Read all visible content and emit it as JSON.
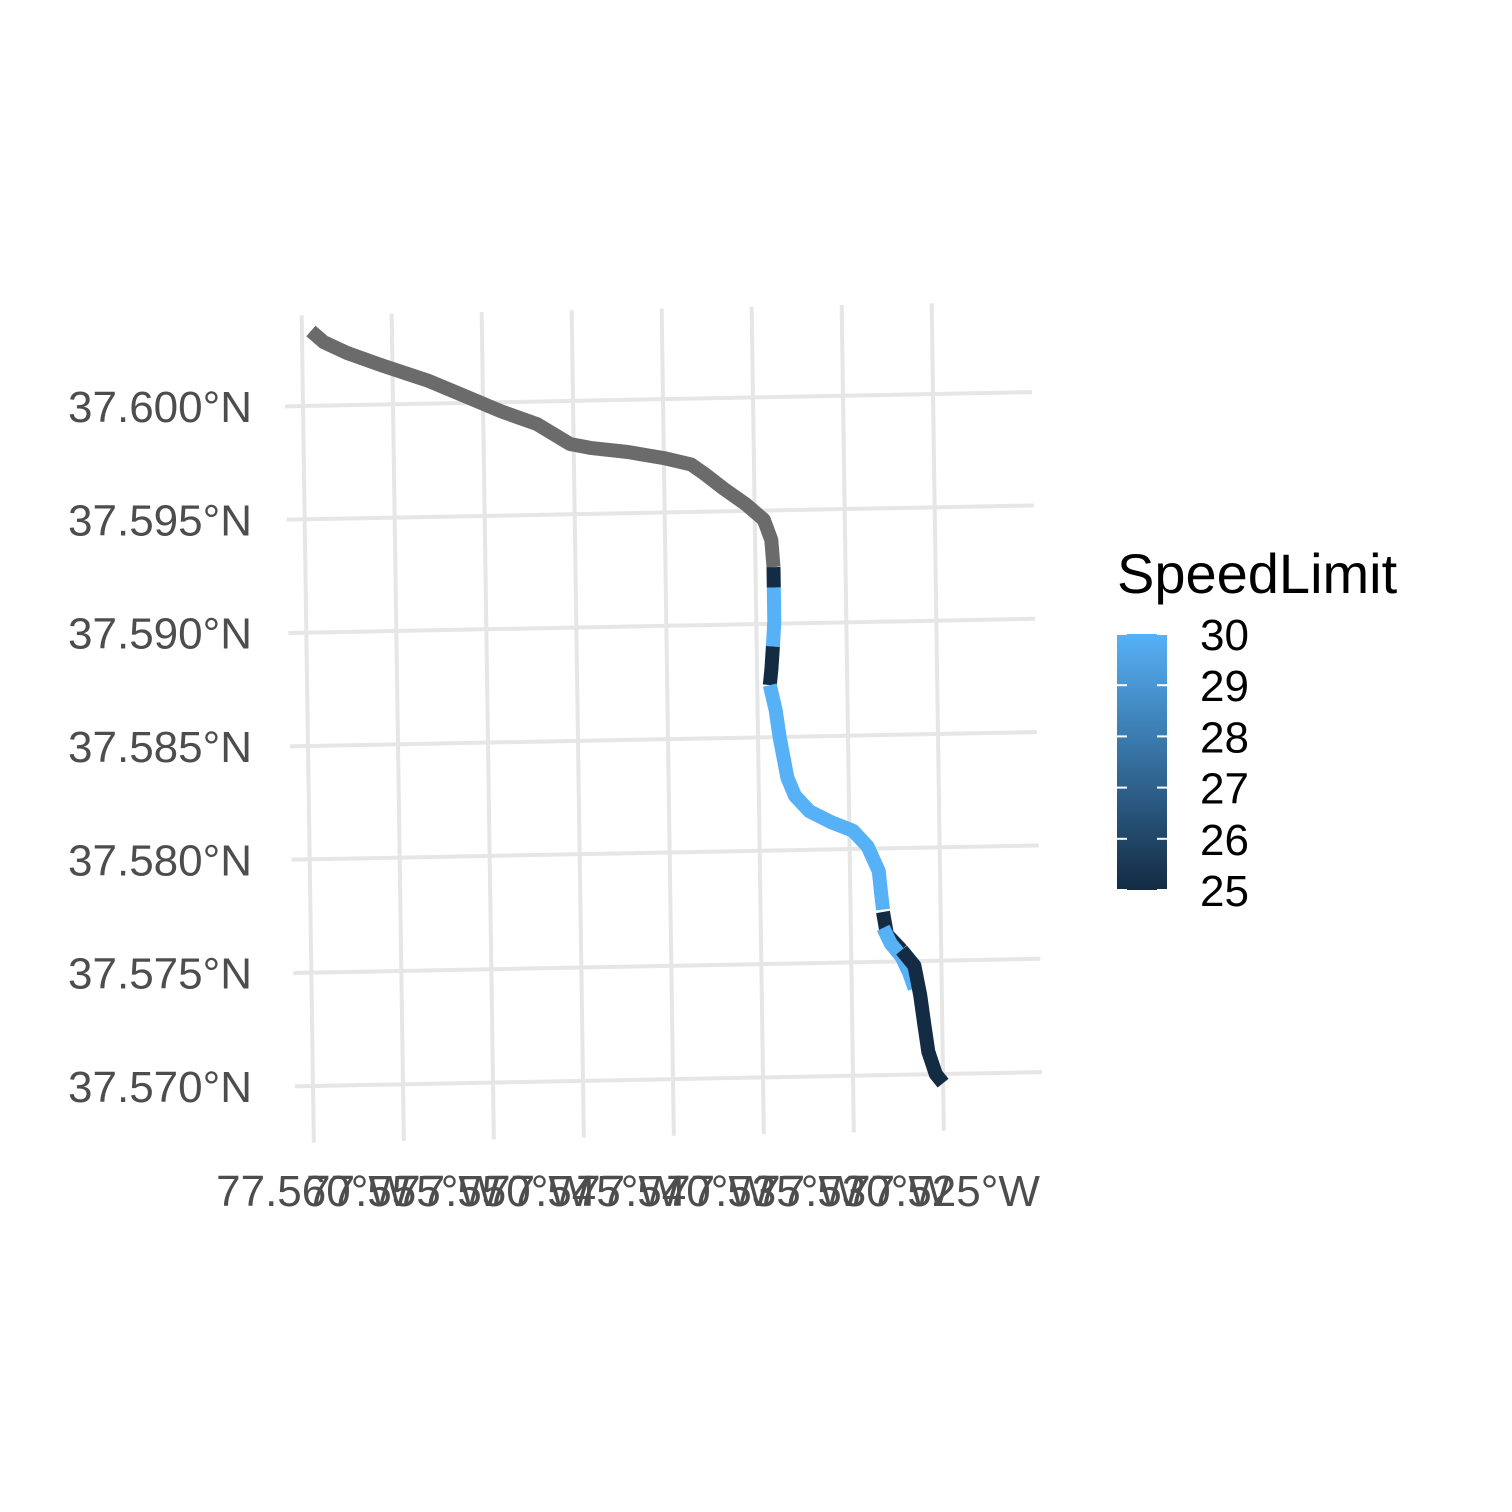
{
  "chart_data": {
    "type": "line",
    "title": "",
    "xlabel": "",
    "ylabel": "",
    "x_axis": {
      "range": [
        -77.56,
        -77.525
      ],
      "ticks": [
        -77.56,
        -77.555,
        -77.55,
        -77.545,
        -77.54,
        -77.535,
        -77.53,
        -77.525
      ],
      "tick_labels": [
        "77.560°W",
        "77.555°W",
        "77.550°W",
        "77.545°W",
        "77.540°W",
        "77.535°W",
        "77.530°W",
        "77.525°W"
      ]
    },
    "y_axis": {
      "range": [
        37.57,
        37.6
      ],
      "ticks": [
        37.57,
        37.575,
        37.58,
        37.585,
        37.59,
        37.595,
        37.6
      ],
      "tick_labels": [
        "37.570°N",
        "37.575°N",
        "37.580°N",
        "37.585°N",
        "37.590°N",
        "37.595°N",
        "37.600°N"
      ]
    },
    "grid": true,
    "legend": {
      "title": "SpeedLimit",
      "position": "right",
      "range": [
        25,
        30
      ],
      "ticks": [
        25,
        26,
        27,
        28,
        29,
        30
      ],
      "tick_labels": [
        "25",
        "26",
        "27",
        "28",
        "29",
        "30"
      ],
      "color_low": "#132b43",
      "color_high": "#56b1f7"
    },
    "na_color": "#6b6b6b",
    "segments": [
      {
        "speed_limit": null,
        "points": [
          [
            -77.5595,
            37.6033
          ],
          [
            -77.5588,
            37.6028
          ],
          [
            -77.5575,
            37.6023
          ],
          [
            -77.5555,
            37.6017
          ],
          [
            -77.553,
            37.601
          ],
          [
            -77.551,
            37.6003
          ],
          [
            -77.549,
            37.5996
          ],
          [
            -77.547,
            37.599
          ],
          [
            -77.546,
            37.5985
          ],
          [
            -77.5452,
            37.5981
          ],
          [
            -77.544,
            37.5979
          ],
          [
            -77.542,
            37.5977
          ],
          [
            -77.54,
            37.5974
          ],
          [
            -77.5385,
            37.5971
          ],
          [
            -77.5378,
            37.5967
          ],
          [
            -77.5367,
            37.596
          ],
          [
            -77.5355,
            37.5953
          ],
          [
            -77.5345,
            37.5946
          ],
          [
            -77.5341,
            37.5937
          ],
          [
            -77.534,
            37.5925
          ]
        ]
      },
      {
        "speed_limit": 25,
        "points": [
          [
            -77.534,
            37.5925
          ],
          [
            -77.534,
            37.5916
          ]
        ]
      },
      {
        "speed_limit": 30,
        "points": [
          [
            -77.534,
            37.5916
          ],
          [
            -77.534,
            37.5901
          ],
          [
            -77.5341,
            37.589
          ]
        ]
      },
      {
        "speed_limit": 25,
        "points": [
          [
            -77.5341,
            37.589
          ],
          [
            -77.5342,
            37.588
          ],
          [
            -77.5343,
            37.5873
          ]
        ]
      },
      {
        "speed_limit": 30,
        "points": [
          [
            -77.5343,
            37.5873
          ],
          [
            -77.534,
            37.5862
          ],
          [
            -77.5338,
            37.585
          ],
          [
            -77.5336,
            37.5841
          ],
          [
            -77.5334,
            37.5832
          ],
          [
            -77.533,
            37.5824
          ],
          [
            -77.5322,
            37.5817
          ],
          [
            -77.531,
            37.5812
          ],
          [
            -77.5298,
            37.5808
          ],
          [
            -77.529,
            37.5801
          ],
          [
            -77.5284,
            37.579
          ],
          [
            -77.5283,
            37.5781
          ],
          [
            -77.5282,
            37.5773
          ]
        ]
      },
      {
        "speed_limit": 25,
        "points": [
          [
            -77.5282,
            37.5772
          ],
          [
            -77.528,
            37.5762
          ],
          [
            -77.5272,
            37.5755
          ]
        ]
      },
      {
        "speed_limit": 30,
        "points": [
          [
            -77.5282,
            37.5765
          ],
          [
            -77.5278,
            37.5758
          ],
          [
            -77.5272,
            37.5752
          ],
          [
            -77.5268,
            37.5745
          ],
          [
            -77.5265,
            37.5738
          ]
        ]
      },
      {
        "speed_limit": 25,
        "points": [
          [
            -77.5272,
            37.5755
          ],
          [
            -77.5265,
            37.5748
          ],
          [
            -77.5262,
            37.5735
          ],
          [
            -77.526,
            37.5722
          ],
          [
            -77.5258,
            37.571
          ],
          [
            -77.5254,
            37.57
          ],
          [
            -77.525,
            37.5696
          ]
        ]
      }
    ]
  }
}
